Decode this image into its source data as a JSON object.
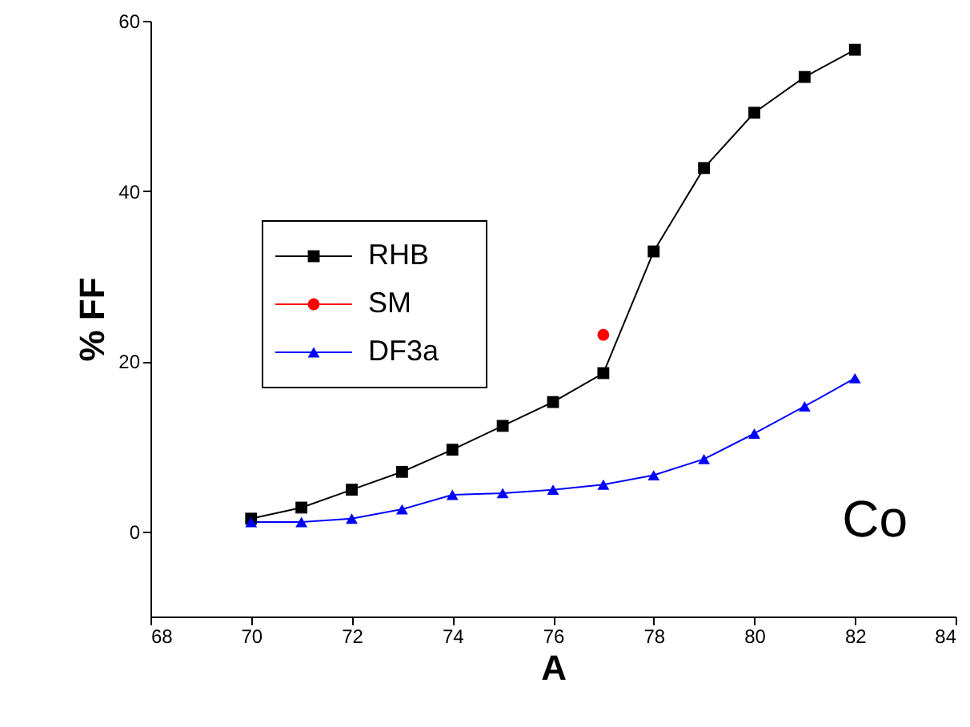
{
  "chart_data": {
    "type": "line",
    "xlabel": "A",
    "ylabel": "% FF",
    "x": [
      70,
      71,
      72,
      73,
      74,
      75,
      76,
      77,
      78,
      79,
      80,
      81,
      82
    ],
    "series": [
      {
        "name": "RHB",
        "color": "#000000",
        "marker": "square",
        "values": [
          1.5,
          2.8,
          4.9,
          7.0,
          9.6,
          12.4,
          15.2,
          18.6,
          32.9,
          42.7,
          49.2,
          53.4,
          56.6
        ]
      },
      {
        "name": "SM",
        "color": "#ff0000",
        "marker": "circle",
        "x": [
          77
        ],
        "values": [
          23.1
        ]
      },
      {
        "name": "DF3a",
        "color": "#0000ff",
        "marker": "triangle",
        "values": [
          1.1,
          1.1,
          1.5,
          2.6,
          4.3,
          4.5,
          4.9,
          5.5,
          6.6,
          8.5,
          11.5,
          14.7,
          18.0
        ]
      }
    ],
    "xlim": [
      68,
      84
    ],
    "xticks": [
      68,
      70,
      72,
      74,
      76,
      78,
      80,
      82,
      84
    ],
    "ylim": [
      -10,
      60
    ],
    "yticks": [
      0,
      20,
      40,
      60
    ],
    "grid": false,
    "legend": "left",
    "annotations": [
      "Co"
    ]
  }
}
